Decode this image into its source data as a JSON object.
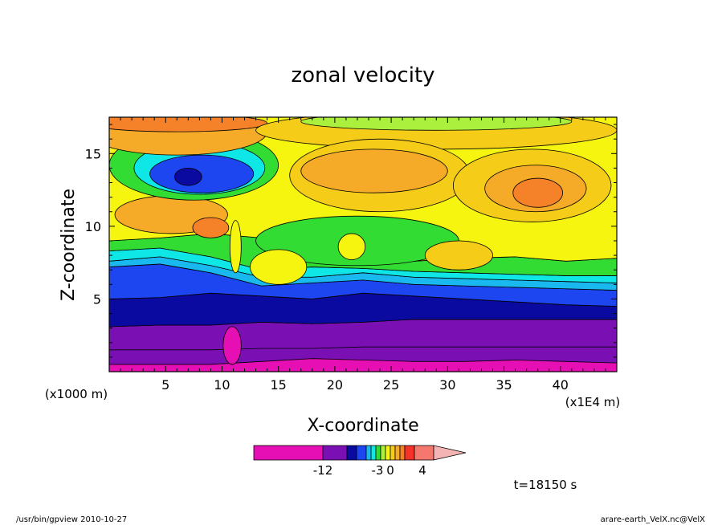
{
  "chart_data": {
    "type": "heatmap",
    "title": "zonal velocity",
    "xlabel": "X-coordinate",
    "ylabel": "Z-coordinate",
    "x_unit_label": "(x1E4 m)",
    "y_unit_label": "(x1000 m)",
    "xlim": [
      0,
      45
    ],
    "ylim": [
      0,
      17.5
    ],
    "x_ticks": [
      5,
      10,
      15,
      20,
      25,
      30,
      35,
      40
    ],
    "y_ticks": [
      5,
      10,
      15
    ],
    "grid": false,
    "colorbar": {
      "tick_labels": [
        "-12",
        "-3",
        "0",
        "4"
      ],
      "colors": [
        "#e60fb4",
        "#7a0fb4",
        "#0a0aa0",
        "#1e46f0",
        "#19b9f0",
        "#0fe6e6",
        "#32dc32",
        "#aaf03c",
        "#f5f50f",
        "#f5cd19",
        "#f5aa28",
        "#f58228",
        "#f53228",
        "#f5786e",
        "#f5b4b4"
      ]
    },
    "time_label": "t=18150 s",
    "footer_left": "/usr/bin/gpview   2010-10-27",
    "footer_right": "arare-earth_VelX.nc@VelX",
    "bands": [
      {
        "name": "-12 to -8",
        "color": "#7a0fb4",
        "z_bottom": [
          1.5,
          1.5,
          1.5,
          1.6,
          1.6,
          1.7,
          1.7,
          1.7,
          1.7,
          1.7,
          1.7
        ],
        "z_top": [
          3.1,
          3.2,
          3.2,
          3.4,
          3.3,
          3.4,
          3.6,
          3.6,
          3.6,
          3.6,
          3.6
        ]
      },
      {
        "name": "-8 to -6",
        "color": "#0a0aa0",
        "z_bottom": [
          3.1,
          3.2,
          3.2,
          3.4,
          3.3,
          3.4,
          3.6,
          3.6,
          3.6,
          3.6,
          3.6
        ],
        "z_top": [
          5.0,
          5.1,
          5.4,
          5.2,
          5.0,
          5.4,
          5.2,
          5.0,
          4.8,
          4.6,
          4.5
        ]
      },
      {
        "name": "-6 to -4",
        "color": "#1e46f0",
        "z_bottom": [
          5.0,
          5.1,
          5.4,
          5.2,
          5.0,
          5.4,
          5.2,
          5.0,
          4.8,
          4.6,
          4.5
        ],
        "z_top": [
          7.2,
          7.4,
          6.8,
          5.9,
          6.1,
          6.3,
          6.0,
          5.9,
          5.8,
          5.7,
          5.6
        ]
      },
      {
        "name": "-4 to -3",
        "color": "#19b9f0",
        "z_bottom": [
          7.2,
          7.4,
          6.8,
          5.9,
          6.1,
          6.3,
          6.0,
          5.9,
          5.8,
          5.7,
          5.6
        ],
        "z_top": [
          7.6,
          7.9,
          7.3,
          6.5,
          6.5,
          6.8,
          6.5,
          6.4,
          6.3,
          6.2,
          6.1
        ]
      },
      {
        "name": "-3 to -2",
        "color": "#0fe6e6",
        "z_bottom": [
          7.6,
          7.9,
          7.3,
          6.5,
          6.5,
          6.8,
          6.5,
          6.4,
          6.3,
          6.2,
          6.1
        ],
        "z_top": [
          8.3,
          8.5,
          7.9,
          7.0,
          7.2,
          7.1,
          6.9,
          6.8,
          6.7,
          6.6,
          6.6
        ]
      },
      {
        "name": "-2 to 0",
        "color": "#32dc32",
        "z_bottom": [
          8.3,
          8.5,
          7.9,
          7.0,
          7.2,
          7.1,
          6.9,
          6.8,
          6.7,
          6.6,
          6.6
        ],
        "z_top": [
          9.0,
          9.2,
          9.5,
          9.2,
          9.4,
          9.8,
          7.6,
          7.8,
          7.9,
          7.6,
          7.8
        ]
      },
      {
        "name": "0 to 1",
        "color": "#f5f50f",
        "z_bottom": [
          9.0,
          9.2,
          9.5,
          9.2,
          9.4,
          9.8,
          7.6,
          7.8,
          7.9,
          7.6,
          7.8
        ],
        "z_top": [
          17.5,
          17.5,
          17.5,
          17.5,
          17.5,
          17.5,
          17.5,
          17.5,
          17.5,
          17.5,
          17.5
        ]
      }
    ],
    "blobs": [
      {
        "color": "#f5aa28",
        "cx": 5.5,
        "cz": 10.8,
        "rx": 5.0,
        "rz": 1.3
      },
      {
        "color": "#f58228",
        "cx": 9.0,
        "cz": 9.9,
        "rx": 1.6,
        "rz": 0.7
      },
      {
        "color": "#32dc32",
        "cx": 7.5,
        "cz": 14.2,
        "rx": 7.5,
        "rz": 2.4
      },
      {
        "color": "#0fe6e6",
        "cx": 8.0,
        "cz": 14.0,
        "rx": 5.8,
        "rz": 1.8
      },
      {
        "color": "#1e46f0",
        "cx": 8.2,
        "cz": 13.6,
        "rx": 4.6,
        "rz": 1.3
      },
      {
        "color": "#0a0aa0",
        "cx": 7.0,
        "cz": 13.4,
        "rx": 1.2,
        "rz": 0.6
      },
      {
        "color": "#f5aa28",
        "cx": 6.0,
        "cz": 16.5,
        "rx": 8.0,
        "rz": 1.6
      },
      {
        "color": "#f58228",
        "cx": 6.0,
        "cz": 17.1,
        "rx": 8.0,
        "rz": 0.6
      },
      {
        "color": "#f5cd19",
        "cx": 29.0,
        "cz": 16.6,
        "rx": 16.0,
        "rz": 1.3
      },
      {
        "color": "#aaf03c",
        "cx": 29.0,
        "cz": 17.2,
        "rx": 12.0,
        "rz": 0.6
      },
      {
        "color": "#f5cd19",
        "cx": 24.0,
        "cz": 13.5,
        "rx": 8.0,
        "rz": 2.5
      },
      {
        "color": "#f5aa28",
        "cx": 23.5,
        "cz": 13.8,
        "rx": 6.5,
        "rz": 1.5
      },
      {
        "color": "#f5cd19",
        "cx": 37.5,
        "cz": 12.8,
        "rx": 7.0,
        "rz": 2.5
      },
      {
        "color": "#f5aa28",
        "cx": 37.8,
        "cz": 12.6,
        "rx": 4.5,
        "rz": 1.6
      },
      {
        "color": "#f58228",
        "cx": 38.0,
        "cz": 12.3,
        "rx": 2.2,
        "rz": 1.0
      },
      {
        "color": "#32dc32",
        "cx": 22.0,
        "cz": 9.0,
        "rx": 9.0,
        "rz": 1.7
      },
      {
        "color": "#f5f50f",
        "cx": 21.5,
        "cz": 8.6,
        "rx": 1.2,
        "rz": 0.9
      },
      {
        "color": "#f5f50f",
        "cx": 15.0,
        "cz": 7.2,
        "rx": 2.5,
        "rz": 1.2
      },
      {
        "color": "#f5cd19",
        "cx": 31.0,
        "cz": 8.0,
        "rx": 3.0,
        "rz": 1.0
      },
      {
        "color": "#e60fb4",
        "cx": 10.9,
        "cz": 1.8,
        "rx": 0.8,
        "rz": 1.3
      },
      {
        "color": "#f5f50f",
        "cx": 11.2,
        "cz": 8.6,
        "rx": 0.5,
        "rz": 1.8
      }
    ],
    "floor": {
      "name": "-16 to -12",
      "color": "#e60fb4",
      "z_top": [
        0.5,
        0.5,
        0.5,
        0.7,
        0.9,
        0.8,
        0.7,
        0.7,
        0.8,
        0.7,
        0.6
      ]
    },
    "band_x": [
      0,
      4.5,
      9,
      13.5,
      18,
      22.5,
      27,
      31.5,
      36,
      40.5,
      45
    ]
  }
}
